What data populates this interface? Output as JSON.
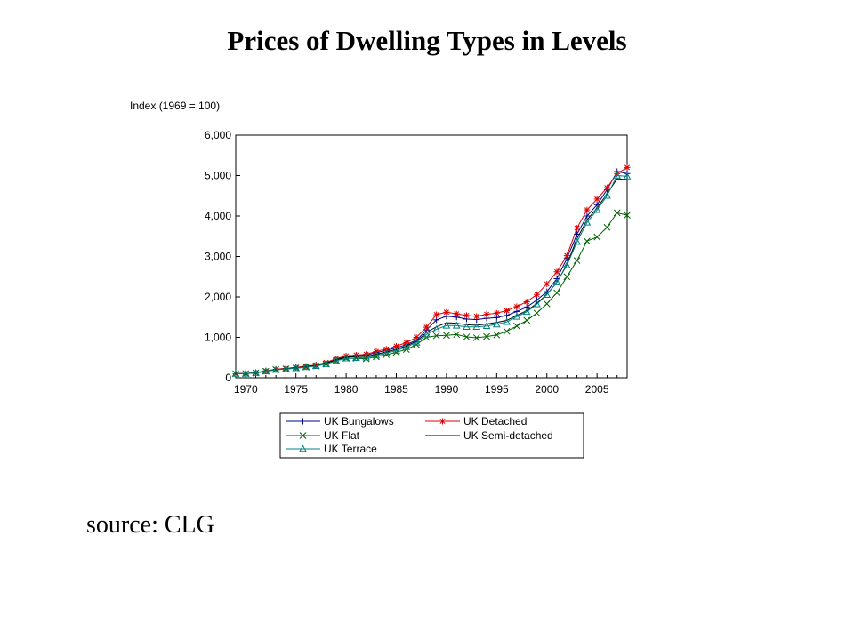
{
  "slide": {
    "title": "Prices of Dwelling Types in Levels",
    "source": "source: CLG"
  },
  "chart_data": {
    "type": "line",
    "ylabel": "Index (1969 = 100)",
    "xlim": [
      1969,
      2008
    ],
    "ylim": [
      0,
      6000
    ],
    "xticks": [
      1970,
      1975,
      1980,
      1985,
      1990,
      1995,
      2000,
      2005
    ],
    "yticks": [
      0,
      1000,
      2000,
      3000,
      4000,
      5000,
      6000
    ],
    "ytick_labels": [
      "0",
      "1,000",
      "2,000",
      "3,000",
      "4,000",
      "5,000",
      "6,000"
    ],
    "grid": false,
    "legend_position": "bottom",
    "x": [
      1969,
      1970,
      1971,
      1972,
      1973,
      1974,
      1975,
      1976,
      1977,
      1978,
      1979,
      1980,
      1981,
      1982,
      1983,
      1984,
      1985,
      1986,
      1987,
      1988,
      1989,
      1990,
      1991,
      1992,
      1993,
      1994,
      1995,
      1996,
      1997,
      1998,
      1999,
      2000,
      2001,
      2002,
      2003,
      2004,
      2005,
      2006,
      2007,
      2008
    ],
    "series": [
      {
        "name": "UK Bungalows",
        "color": "#00008B",
        "marker": "plus",
        "values": [
          100,
          105,
          125,
          165,
          205,
          225,
          250,
          275,
          305,
          360,
          450,
          520,
          540,
          560,
          620,
          680,
          740,
          820,
          930,
          1180,
          1430,
          1520,
          1500,
          1450,
          1440,
          1470,
          1490,
          1540,
          1640,
          1750,
          1920,
          2130,
          2450,
          2950,
          3550,
          4000,
          4280,
          4650,
          5100,
          5050
        ]
      },
      {
        "name": "UK Detached",
        "color": "#E00000",
        "marker": "star",
        "values": [
          100,
          105,
          128,
          170,
          210,
          232,
          258,
          285,
          318,
          380,
          470,
          540,
          560,
          580,
          650,
          710,
          780,
          870,
          1000,
          1250,
          1560,
          1620,
          1580,
          1540,
          1520,
          1570,
          1600,
          1660,
          1760,
          1880,
          2060,
          2320,
          2620,
          3020,
          3700,
          4150,
          4420,
          4700,
          5050,
          5200
        ]
      },
      {
        "name": "UK Flat",
        "color": "#006400",
        "marker": "x",
        "values": [
          100,
          103,
          118,
          160,
          200,
          218,
          240,
          262,
          290,
          340,
          420,
          480,
          480,
          470,
          520,
          570,
          630,
          700,
          820,
          1000,
          1040,
          1050,
          1070,
          1010,
          990,
          1020,
          1060,
          1150,
          1280,
          1420,
          1600,
          1830,
          2100,
          2500,
          2900,
          3380,
          3480,
          3720,
          4080,
          4020
        ]
      },
      {
        "name": "UK Semi-detached",
        "color": "#000000",
        "marker": "none",
        "values": [
          100,
          104,
          122,
          163,
          203,
          222,
          247,
          272,
          302,
          355,
          440,
          505,
          520,
          530,
          580,
          640,
          700,
          790,
          900,
          1120,
          1260,
          1360,
          1350,
          1310,
          1300,
          1330,
          1370,
          1420,
          1540,
          1660,
          1840,
          2060,
          2360,
          2800,
          3440,
          3900,
          4200,
          4550,
          4920,
          4900
        ]
      },
      {
        "name": "UK Terrace",
        "color": "#008080",
        "marker": "triangle",
        "values": [
          100,
          104,
          120,
          160,
          198,
          218,
          240,
          264,
          292,
          340,
          420,
          480,
          490,
          500,
          550,
          610,
          670,
          760,
          870,
          1070,
          1200,
          1290,
          1290,
          1260,
          1260,
          1280,
          1320,
          1380,
          1510,
          1630,
          1820,
          2050,
          2360,
          2780,
          3360,
          3840,
          4150,
          4500,
          5000,
          4980
        ]
      }
    ]
  }
}
